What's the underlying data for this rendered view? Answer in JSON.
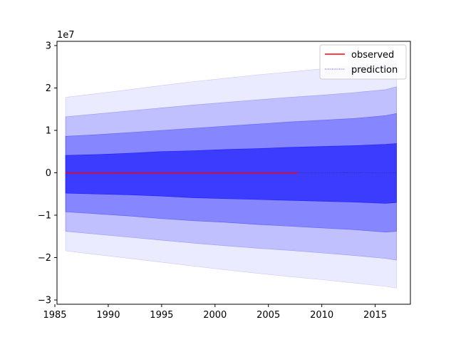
{
  "chart_data": {
    "type": "area",
    "title": "",
    "xlabel": "",
    "ylabel": "",
    "y_scale_label": "1e7",
    "xlim": [
      1985.2,
      2018.3
    ],
    "ylim": [
      -3.1,
      3.1
    ],
    "x_ticks": [
      1985,
      1990,
      1995,
      2000,
      2005,
      2010,
      2015
    ],
    "y_ticks": [
      -3,
      -2,
      -1,
      0,
      1,
      2,
      3
    ],
    "grid": false,
    "legend_position": "upper right",
    "legend": [
      {
        "label": "observed",
        "style": "solid",
        "color": "#ff0000"
      },
      {
        "label": "prediction",
        "style": "dotted",
        "color": "#0000ff"
      }
    ],
    "colors": {
      "observed": "#ff0000",
      "band": "#0000ff"
    },
    "observed": {
      "x_range": [
        1986,
        2007.8
      ],
      "value": 0
    },
    "prediction": {
      "x": [
        1986,
        1989,
        1992,
        1995,
        1998,
        2001,
        2004,
        2007,
        2010,
        2013,
        2016,
        2017
      ],
      "mean": [
        0,
        0,
        -0.05,
        0.05,
        0,
        -0.05,
        0.05,
        0,
        -0.05,
        0,
        -0.05,
        0
      ],
      "bands": [
        {
          "level": "50%",
          "opacity": 0.55,
          "upper": [
            4.1,
            4.3,
            4.6,
            5.0,
            5.2,
            5.5,
            5.7,
            6.0,
            6.2,
            6.4,
            6.7,
            6.9
          ],
          "lower": [
            -4.8,
            -5.0,
            -5.2,
            -5.5,
            -5.9,
            -6.1,
            -6.3,
            -6.5,
            -6.7,
            -6.9,
            -7.2,
            -7.0
          ]
        },
        {
          "level": "80%",
          "opacity": 0.3,
          "upper": [
            8.6,
            9.0,
            9.5,
            10.0,
            10.5,
            11.0,
            11.5,
            12.0,
            12.4,
            12.8,
            13.5,
            14.0
          ],
          "lower": [
            -9.2,
            -9.7,
            -10.2,
            -10.8,
            -11.3,
            -11.7,
            -12.2,
            -12.6,
            -13.0,
            -13.4,
            -14.0,
            -13.8
          ]
        },
        {
          "level": "95%",
          "opacity": 0.18,
          "upper": [
            13.2,
            13.9,
            14.6,
            15.3,
            16.0,
            16.6,
            17.2,
            17.8,
            18.3,
            18.9,
            19.6,
            20.3
          ],
          "lower": [
            -13.8,
            -14.5,
            -15.2,
            -15.9,
            -16.6,
            -17.2,
            -17.8,
            -18.3,
            -18.9,
            -19.5,
            -20.2,
            -20.6
          ]
        },
        {
          "level": "99%",
          "opacity": 0.08,
          "upper": [
            17.8,
            18.7,
            19.6,
            20.6,
            21.5,
            22.3,
            23.1,
            23.8,
            24.5,
            25.2,
            26.0,
            26.5
          ],
          "lower": [
            -18.4,
            -19.3,
            -20.2,
            -21.1,
            -22.0,
            -22.9,
            -23.7,
            -24.5,
            -25.2,
            -26.0,
            -26.8,
            -27.2
          ]
        }
      ]
    }
  }
}
